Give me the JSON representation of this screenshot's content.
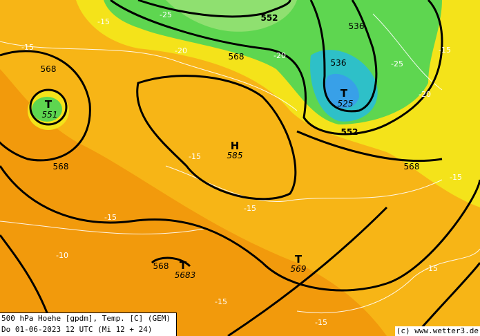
{
  "title_line1": "500 hPa Hoehe [gpdm], Temp. [C] (GEM)",
  "title_line2": "Do 01-06-2023 12 UTC (Mi 12 + 24)",
  "credit": "(c) www.wetter3.de",
  "colors": {
    "warm": "#f29a0c",
    "mild": "#f7b516",
    "yellow": "#f4e31a",
    "green": "#5ed650",
    "cyan": "#2ec0c8",
    "contour": "#000000",
    "isotherm": "#ffffff"
  },
  "height_labels": [
    "568",
    "552",
    "536",
    "536",
    "568",
    "568",
    "568",
    "568",
    "552"
  ],
  "temp_labels": [
    "-25",
    "-15",
    "-15",
    "-20",
    "-20",
    "-25",
    "-15",
    "-20",
    "-15",
    "-15",
    "-15",
    "-15",
    "-10",
    "-15",
    "-15",
    "-15"
  ],
  "centers": [
    {
      "type": "T",
      "value": "551"
    },
    {
      "type": "T",
      "value": "525"
    },
    {
      "type": "H",
      "value": "585"
    },
    {
      "type": "T",
      "value": "5683"
    },
    {
      "type": "T",
      "value": "569"
    }
  ]
}
